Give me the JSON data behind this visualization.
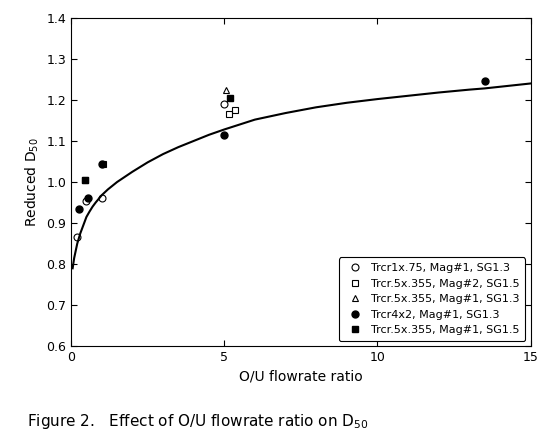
{
  "xlabel": "O/U flowrate ratio",
  "ylabel": "Reduced D$_{50}$",
  "xlim": [
    0,
    15
  ],
  "ylim": [
    0.6,
    1.4
  ],
  "yticks": [
    0.6,
    0.7,
    0.8,
    0.9,
    1.0,
    1.1,
    1.2,
    1.3,
    1.4
  ],
  "xticks": [
    0,
    5,
    10,
    15
  ],
  "series": [
    {
      "label": "Trcr1x.75, Mag#1, SG1.3",
      "marker": "o",
      "filled": false,
      "color": "black",
      "x": [
        0.18,
        0.5,
        1.0,
        5.0
      ],
      "y": [
        0.865,
        0.955,
        0.96,
        1.19
      ]
    },
    {
      "label": "Trcr.5x.355, Mag#2, SG1.5",
      "marker": "s",
      "filled": false,
      "color": "black",
      "x": [
        0.45,
        1.05,
        5.15,
        5.35
      ],
      "y": [
        1.005,
        1.045,
        1.165,
        1.175
      ]
    },
    {
      "label": "Trcr.5x.355, Mag#1, SG1.3",
      "marker": "^",
      "filled": false,
      "color": "black",
      "x": [
        5.05
      ],
      "y": [
        1.225
      ]
    },
    {
      "label": "Trcr4x2, Mag#1, SG1.3",
      "marker": "o",
      "filled": true,
      "color": "black",
      "x": [
        0.25,
        0.55,
        1.0,
        5.0,
        13.5
      ],
      "y": [
        0.935,
        0.96,
        1.045,
        1.115,
        1.245
      ]
    },
    {
      "label": "Trcr.5x.355, Mag#1, SG1.5",
      "marker": "s",
      "filled": true,
      "color": "black",
      "x": [
        0.45,
        5.2
      ],
      "y": [
        1.005,
        1.205
      ]
    }
  ],
  "curve_x": [
    0.05,
    0.1,
    0.2,
    0.3,
    0.4,
    0.5,
    0.6,
    0.7,
    0.8,
    1.0,
    1.2,
    1.5,
    2.0,
    2.5,
    3.0,
    3.5,
    4.0,
    4.5,
    5.0,
    6.0,
    7.0,
    8.0,
    9.0,
    10.0,
    11.0,
    12.0,
    13.0,
    13.5,
    14.0,
    15.0
  ],
  "curve_y": [
    0.79,
    0.815,
    0.85,
    0.875,
    0.895,
    0.915,
    0.928,
    0.94,
    0.95,
    0.968,
    0.982,
    1.0,
    1.025,
    1.048,
    1.068,
    1.085,
    1.1,
    1.115,
    1.128,
    1.152,
    1.168,
    1.182,
    1.193,
    1.202,
    1.21,
    1.218,
    1.225,
    1.228,
    1.232,
    1.24
  ],
  "caption": "Figure 2.   Effect of O/U flowrate ratio on D$_{50}$",
  "background_color": "#ffffff",
  "text_color": "#000000"
}
